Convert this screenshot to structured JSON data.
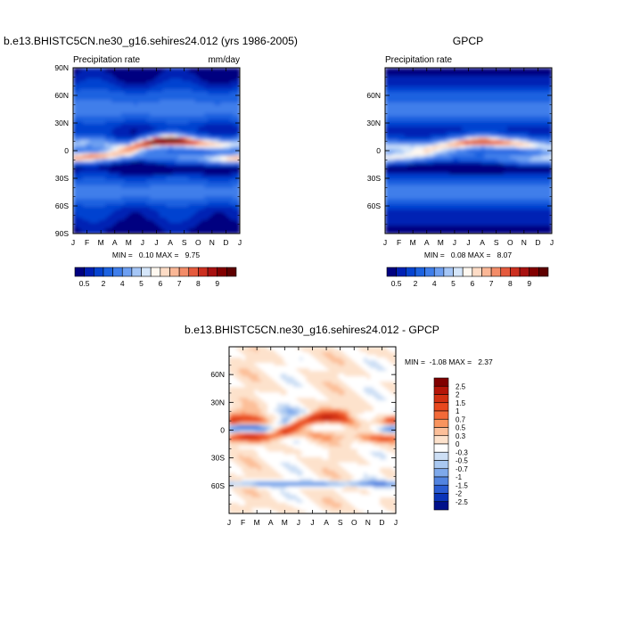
{
  "panels": {
    "model": {
      "title": "b.e13.BHISTC5CN.ne30_g16.sehires24.012 (yrs 1986-2005)",
      "left_string": "Precipitation rate",
      "right_string": "mm/day",
      "minmax": "MIN =   0.10 MAX =   9.75"
    },
    "obs": {
      "title": "GPCP",
      "left_string": "Precipitation rate",
      "minmax": "MIN =   0.08 MAX =   8.07"
    },
    "diff": {
      "title": "b.e13.BHISTC5CN.ne30_g16.sehires24.012 - GPCP",
      "minmax": "MIN =  -1.08 MAX =   2.37"
    }
  },
  "chart_data": [
    {
      "type": "heatmap",
      "title": "b.e13.BHISTC5CN.ne30_g16.sehires24.012 (yrs 1986-2005)",
      "subtitle_left": "Precipitation rate",
      "subtitle_right": "mm/day",
      "x": [
        "J",
        "F",
        "M",
        "A",
        "M",
        "J",
        "J",
        "A",
        "S",
        "O",
        "N",
        "D",
        "J"
      ],
      "y_ticks": [
        "90N",
        "60N",
        "30N",
        "0",
        "30S",
        "60S",
        "90S"
      ],
      "y_values": [
        90,
        60,
        30,
        0,
        -30,
        -60,
        -90
      ],
      "ylim": [
        -90,
        90
      ],
      "min": 0.1,
      "max": 9.75,
      "colorbar_labels": [
        "0.5",
        "2",
        "4",
        "5",
        "6",
        "7",
        "8",
        "9"
      ],
      "colorbar_levels": [
        0.2,
        0.5,
        1,
        2,
        3,
        4,
        4.5,
        5,
        5.5,
        6,
        6.5,
        7,
        7.5,
        8,
        8.5,
        9
      ],
      "colors": [
        "#000080",
        "#0020b4",
        "#0543d0",
        "#1c62e0",
        "#3f7eea",
        "#6d9ff1",
        "#a5c6f6",
        "#d5e6fa",
        "#fff8f0",
        "#fddcc6",
        "#fab796",
        "#f38c68",
        "#e55a3d",
        "#cc2f1f",
        "#a81110",
        "#820000",
        "#5e0000"
      ],
      "wet_band_lat": [
        7.5,
        9,
        8,
        4,
        3,
        7,
        10,
        11,
        10,
        8,
        7,
        6,
        7.5
      ],
      "wet_band_peak": [
        4.5,
        4,
        3.5,
        4.5,
        6,
        8,
        9.5,
        9.75,
        8.5,
        7,
        6.5,
        5.5,
        4.5
      ],
      "south_band_lat": [
        -8,
        -7,
        -6,
        -5,
        -4,
        -4,
        -5,
        -6,
        -7,
        -8,
        -9,
        -9,
        -8
      ],
      "south_band_peak": [
        6.5,
        7,
        6.5,
        5.5,
        4,
        3,
        2.5,
        2.5,
        3,
        3.5,
        5,
        6,
        6.5
      ]
    },
    {
      "type": "heatmap",
      "title": "GPCP",
      "subtitle_left": "Precipitation rate",
      "x": [
        "J",
        "F",
        "M",
        "A",
        "M",
        "J",
        "J",
        "A",
        "S",
        "O",
        "N",
        "D",
        "J"
      ],
      "y_ticks": [
        "60N",
        "30N",
        "0",
        "30S",
        "60S"
      ],
      "y_values": [
        60,
        30,
        0,
        -30,
        -60
      ],
      "ylim": [
        -90,
        90
      ],
      "min": 0.08,
      "max": 8.07,
      "colorbar_labels": [
        "0.5",
        "2",
        "4",
        "5",
        "6",
        "7",
        "8",
        "9"
      ],
      "colorbar_levels": [
        0.2,
        0.5,
        1,
        2,
        3,
        4,
        4.5,
        5,
        5.5,
        6,
        6.5,
        7,
        7.5,
        8,
        8.5,
        9
      ],
      "colors": [
        "#000080",
        "#0020b4",
        "#0543d0",
        "#1c62e0",
        "#3f7eea",
        "#6d9ff1",
        "#a5c6f6",
        "#d5e6fa",
        "#fff8f0",
        "#fddcc6",
        "#fab796",
        "#f38c68",
        "#e55a3d",
        "#cc2f1f",
        "#a81110",
        "#820000",
        "#5e0000"
      ],
      "wet_band_lat": [
        4,
        4,
        3,
        3,
        5,
        7,
        9,
        10,
        9,
        8,
        7,
        5,
        4
      ],
      "wet_band_peak": [
        4.5,
        4.5,
        4.5,
        5,
        5.5,
        6.5,
        7.5,
        8,
        7.5,
        6.5,
        6,
        5,
        4.5
      ],
      "south_band_lat": [
        -8,
        -7,
        -6,
        -5,
        -4,
        -4,
        -5,
        -6,
        -7,
        -8,
        -9,
        -9,
        -8
      ],
      "south_band_peak": [
        5,
        5,
        4.5,
        4,
        3,
        2.5,
        2,
        2,
        2.5,
        3,
        4,
        4.5,
        5
      ]
    },
    {
      "type": "heatmap",
      "title": "b.e13.BHISTC5CN.ne30_g16.sehires24.012 - GPCP",
      "x": [
        "J",
        "F",
        "M",
        "A",
        "M",
        "J",
        "J",
        "A",
        "S",
        "O",
        "N",
        "D",
        "J"
      ],
      "y_ticks": [
        "60N",
        "30N",
        "0",
        "30S",
        "60S"
      ],
      "y_values": [
        60,
        30,
        0,
        -30,
        -60
      ],
      "ylim": [
        -90,
        90
      ],
      "min": -1.08,
      "max": 2.37,
      "colorbar_labels": [
        "2.5",
        "2",
        "1.5",
        "1",
        "0.7",
        "0.5",
        "0.3",
        "0",
        "-0.3",
        "-0.5",
        "-0.7",
        "-1",
        "-1.5",
        "-2",
        "-2.5"
      ],
      "colorbar_levels": [
        2.5,
        2,
        1.5,
        1,
        0.7,
        0.5,
        0.3,
        0,
        -0.3,
        -0.5,
        -0.7,
        -1,
        -1.5,
        -2,
        -2.5
      ],
      "colors": [
        "#800000",
        "#b41508",
        "#d23012",
        "#e8481e",
        "#f36a38",
        "#f9945e",
        "#fcbf99",
        "#fde2cc",
        "#ffffff",
        "#cddff5",
        "#a9c8f1",
        "#7ea9eb",
        "#5284e0",
        "#2a5cd2",
        "#0a34b8",
        "#00108a"
      ]
    }
  ]
}
